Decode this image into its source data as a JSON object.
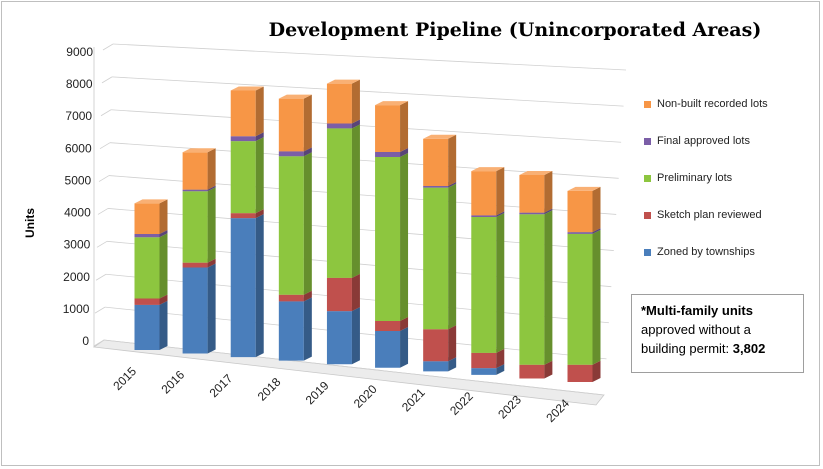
{
  "chart_data": {
    "type": "bar",
    "stacked": true,
    "three_d": true,
    "title": "Development Pipeline (Unincorporated Areas)",
    "ylabel": "Units",
    "xlabel": "",
    "ylim": [
      0,
      9000
    ],
    "yticks": [
      0,
      1000,
      2000,
      3000,
      4000,
      5000,
      6000,
      7000,
      8000,
      9000
    ],
    "grid": true,
    "legend_position": "right",
    "categories": [
      "2015",
      "2016",
      "2017",
      "2018",
      "2019",
      "2020",
      "2021",
      "2022",
      "2023",
      "2024"
    ],
    "series": [
      {
        "name": "Zoned by townships",
        "color": "#4a7ebb",
        "values": [
          1400,
          2650,
          4250,
          1800,
          1600,
          1100,
          300,
          200,
          0,
          0
        ]
      },
      {
        "name": "Sketch plan reviewed",
        "color": "#c0504d",
        "values": [
          200,
          150,
          150,
          200,
          1000,
          300,
          950,
          450,
          400,
          500
        ]
      },
      {
        "name": "Preliminary lots",
        "color": "#8dc63f",
        "values": [
          1900,
          2200,
          2200,
          4200,
          4500,
          4900,
          4200,
          4000,
          4400,
          3800
        ]
      },
      {
        "name": "Final approved lots",
        "color": "#7b5ea7",
        "values": [
          100,
          50,
          150,
          150,
          150,
          150,
          50,
          50,
          50,
          50
        ]
      },
      {
        "name": "Non-built recorded lots",
        "color": "#f79646",
        "values": [
          950,
          1150,
          1400,
          1600,
          1200,
          1400,
          1400,
          1300,
          1100,
          1200
        ]
      }
    ]
  },
  "note": {
    "line1": "*Multi-family units",
    "line2": "approved without a",
    "line3_prefix": "building permit: ",
    "line3_value": "3,802"
  }
}
